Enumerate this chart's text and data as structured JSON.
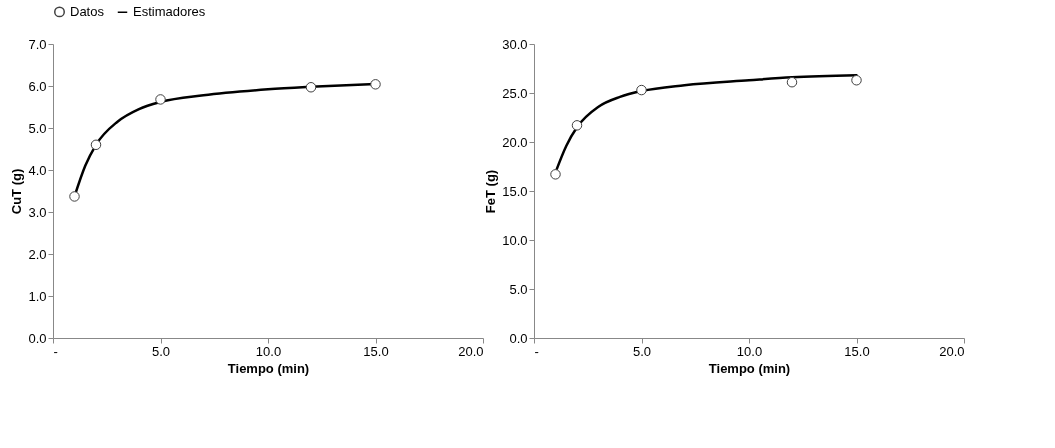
{
  "chart_data": [
    {
      "type": "scatter",
      "xlabel": "Tiempo (min)",
      "ylabel": "CuT (g)",
      "legend": "top",
      "grid": false,
      "xlim": [
        0,
        20
      ],
      "xticks": [
        {
          "value": 0,
          "label": "-"
        },
        {
          "value": 5,
          "label": "5.0"
        },
        {
          "value": 10,
          "label": "10.0"
        },
        {
          "value": 15,
          "label": "15.0"
        },
        {
          "value": 20,
          "label": "20.0"
        }
      ],
      "ylim": [
        0,
        7
      ],
      "yticks": [
        {
          "value": 0,
          "label": "0.0"
        },
        {
          "value": 1,
          "label": "1.0"
        },
        {
          "value": 2,
          "label": "2.0"
        },
        {
          "value": 3,
          "label": "3.0"
        },
        {
          "value": 4,
          "label": "4.0"
        },
        {
          "value": 5,
          "label": "5.0"
        },
        {
          "value": 6,
          "label": "6.0"
        },
        {
          "value": 7,
          "label": "7.0"
        }
      ],
      "series": [
        {
          "name": "Datos",
          "marker": "circle",
          "color": "#ffffff",
          "x": [
            1,
            2,
            5,
            12,
            15
          ],
          "values": [
            3.37,
            4.6,
            5.68,
            5.97,
            6.04
          ]
        },
        {
          "name": "Estimadores",
          "type": "line",
          "color": "#000000",
          "x": [
            1,
            1.5,
            2,
            3,
            4,
            5,
            7,
            10,
            12,
            15
          ],
          "values": [
            3.37,
            4.1,
            4.6,
            5.15,
            5.45,
            5.62,
            5.78,
            5.92,
            5.98,
            6.05
          ]
        }
      ]
    },
    {
      "type": "scatter",
      "xlabel": "Tiempo (min)",
      "ylabel": "FeT (g)",
      "legend": "top",
      "grid": false,
      "xlim": [
        0,
        20
      ],
      "xticks": [
        {
          "value": 0,
          "label": "-"
        },
        {
          "value": 5,
          "label": "5.0"
        },
        {
          "value": 10,
          "label": "10.0"
        },
        {
          "value": 15,
          "label": "15.0"
        },
        {
          "value": 20,
          "label": "20.0"
        }
      ],
      "ylim": [
        0,
        30
      ],
      "yticks": [
        {
          "value": 0,
          "label": "0.0"
        },
        {
          "value": 5,
          "label": "5.0"
        },
        {
          "value": 10,
          "label": "10.0"
        },
        {
          "value": 15,
          "label": "15.0"
        },
        {
          "value": 20,
          "label": "20.0"
        },
        {
          "value": 25,
          "label": "25.0"
        },
        {
          "value": 30,
          "label": "30.0"
        }
      ],
      "series": [
        {
          "name": "Datos",
          "marker": "circle",
          "color": "#ffffff",
          "x": [
            1,
            2,
            5,
            12,
            15
          ],
          "values": [
            16.7,
            21.7,
            25.3,
            26.1,
            26.3
          ]
        },
        {
          "name": "Estimadores",
          "type": "line",
          "color": "#000000",
          "x": [
            1,
            1.5,
            2,
            3,
            4,
            5,
            7,
            10,
            12,
            15
          ],
          "values": [
            16.9,
            19.6,
            21.5,
            23.6,
            24.6,
            25.2,
            25.8,
            26.3,
            26.6,
            26.8
          ]
        }
      ]
    }
  ]
}
